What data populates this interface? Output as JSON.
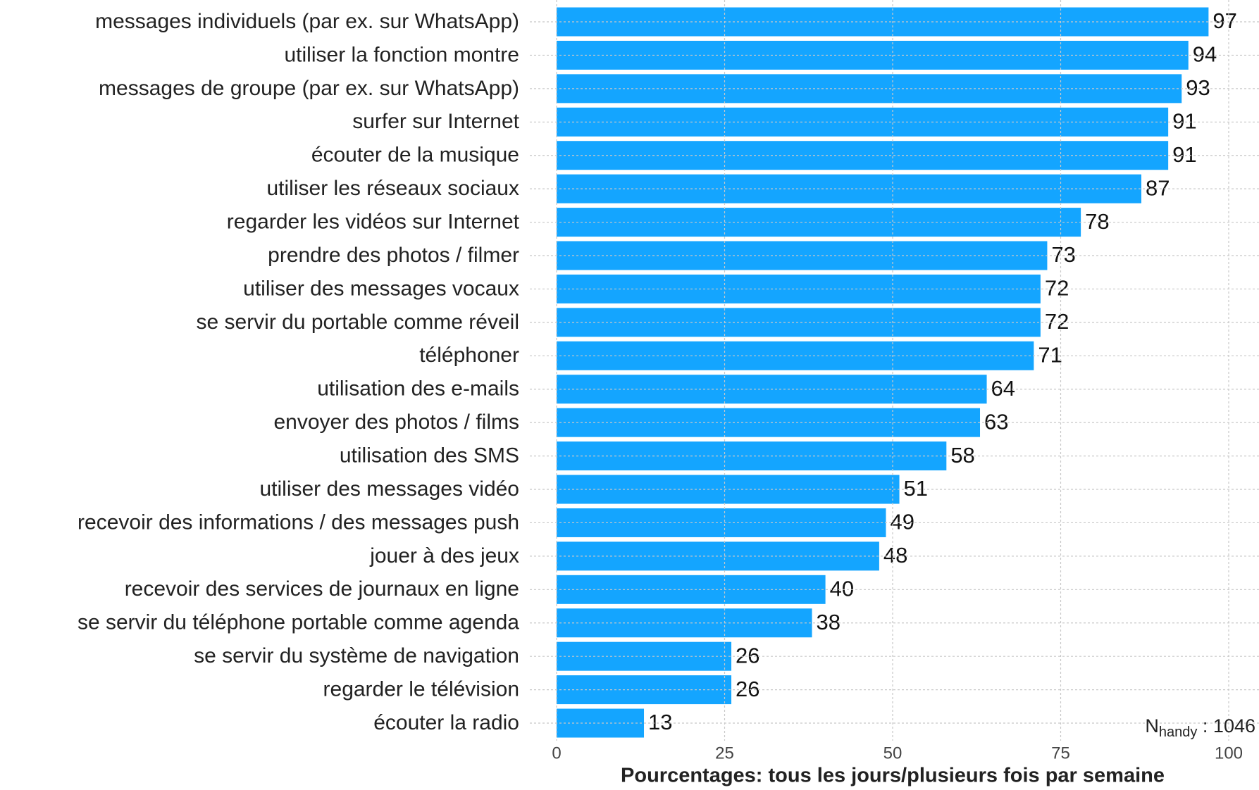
{
  "chart_data": {
    "type": "barh",
    "categories": [
      "messages individuels (par ex. sur WhatsApp)",
      "utiliser la fonction montre",
      "messages de groupe (par ex. sur WhatsApp)",
      "surfer sur Internet",
      "écouter de la musique",
      "utiliser les réseaux sociaux",
      "regarder les vidéos sur Internet",
      "prendre des photos / filmer",
      "utiliser des messages vocaux",
      "se servir du portable comme réveil",
      "téléphoner",
      "utilisation des e-mails",
      "envoyer des photos / films",
      "utilisation des SMS",
      "utiliser des messages vidéo",
      "recevoir des informations / des messages push",
      "jouer à des jeux",
      "recevoir des services de journaux en ligne",
      "se servir du téléphone portable comme agenda",
      "se servir du système de navigation",
      "regarder le télévision",
      "écouter la radio"
    ],
    "values": [
      97,
      94,
      93,
      91,
      91,
      87,
      78,
      73,
      72,
      72,
      71,
      64,
      63,
      58,
      51,
      49,
      48,
      40,
      38,
      26,
      26,
      13
    ],
    "color": "#14a5ff",
    "xlabel": "Pourcentages: tous les jours/plusieurs fois par semaine",
    "xlim": [
      0,
      100
    ],
    "xticks": [
      0,
      25,
      50,
      75,
      100
    ],
    "grid": true,
    "annotation": {
      "main": "N",
      "sub": "handy",
      "rest": " : 1046"
    }
  }
}
